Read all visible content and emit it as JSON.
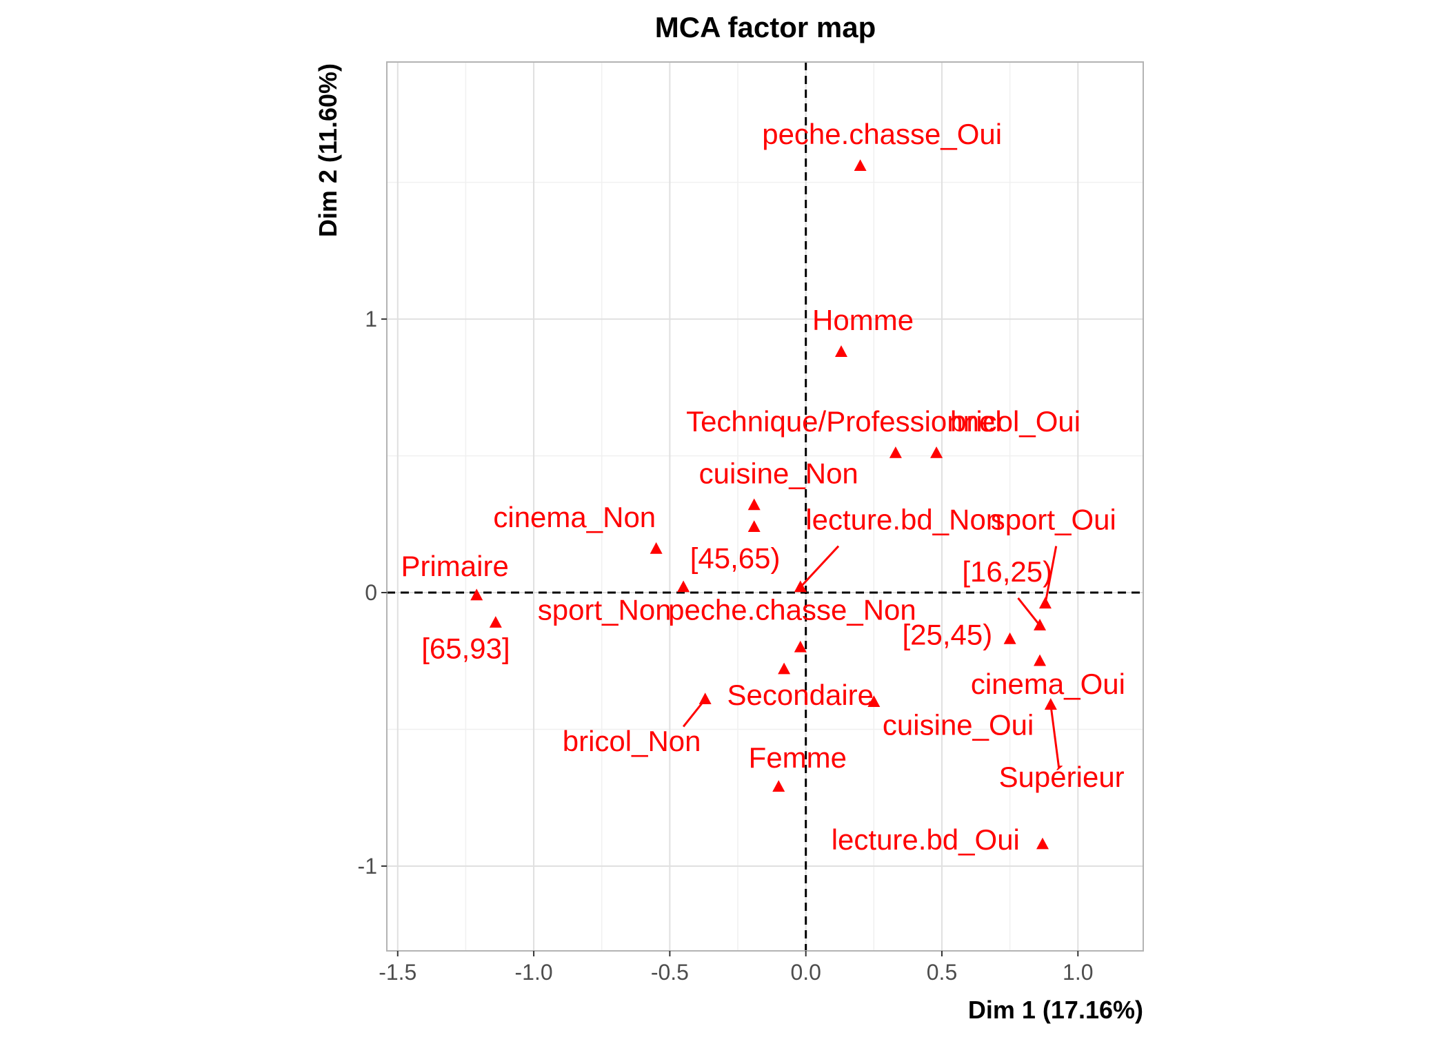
{
  "chart_data": {
    "type": "scatter",
    "title": "MCA factor map",
    "xlabel": "Dim 1 (17.16%)",
    "ylabel": "Dim 2 (11.60%)",
    "xlim": [
      -1.54,
      1.24
    ],
    "ylim": [
      -1.31,
      1.94
    ],
    "x_ticks": [
      -1.5,
      -1.0,
      -0.5,
      0.0,
      0.5,
      1.0
    ],
    "x_tick_labels": [
      "-1.5",
      "-1.0",
      "-0.5",
      "0.0",
      "0.5",
      "1.0"
    ],
    "y_ticks": [
      -1,
      0,
      1
    ],
    "y_tick_labels": [
      "-1",
      "0",
      "1"
    ],
    "grid": true,
    "reference_lines": [
      0,
      0
    ],
    "color": "#ff0000",
    "points": [
      {
        "label": "peche.chasse_Oui",
        "x": 0.2,
        "y": 1.56,
        "label_x": 0.28,
        "label_y": 1.64,
        "anchor": "middle"
      },
      {
        "label": "Homme",
        "x": 0.13,
        "y": 0.88,
        "label_x": 0.21,
        "label_y": 0.96,
        "anchor": "middle"
      },
      {
        "label": "Technique/Professionnel",
        "x": 0.33,
        "y": 0.51,
        "label_x": -0.44,
        "label_y": 0.59,
        "anchor": "start"
      },
      {
        "label": "bricol_Oui",
        "x": 0.48,
        "y": 0.51,
        "label_x": 0.77,
        "label_y": 0.59,
        "anchor": "middle"
      },
      {
        "label": "cuisine_Non",
        "x": -0.19,
        "y": 0.32,
        "label_x": -0.1,
        "label_y": 0.4,
        "anchor": "middle"
      },
      {
        "label": "cinema_Non",
        "x": -0.55,
        "y": 0.16,
        "label_x": -0.85,
        "label_y": 0.24,
        "anchor": "middle"
      },
      {
        "label": "lecture.bd_Non",
        "x": -0.02,
        "y": 0.02,
        "label_x": 0.36,
        "label_y": 0.23,
        "anchor": "middle",
        "segment": [
          0.12,
          0.17,
          -0.02,
          0.02
        ]
      },
      {
        "label": "sport_Oui",
        "x": 0.88,
        "y": -0.04,
        "label_x": 0.91,
        "label_y": 0.23,
        "anchor": "middle",
        "segment": [
          0.92,
          0.17,
          0.88,
          -0.04
        ]
      },
      {
        "label": "[45,65)",
        "x": -0.19,
        "y": 0.24,
        "label_x": -0.26,
        "label_y": 0.09,
        "anchor": "middle"
      },
      {
        "label": "Primaire",
        "x": -1.21,
        "y": -0.01,
        "label_x": -1.29,
        "label_y": 0.06,
        "anchor": "middle"
      },
      {
        "label": "[16,25)",
        "x": 0.86,
        "y": -0.12,
        "label_x": 0.74,
        "label_y": 0.04,
        "anchor": "middle",
        "segment": [
          0.78,
          -0.02,
          0.86,
          -0.12
        ]
      },
      {
        "label": "sport_Non",
        "x": -0.45,
        "y": 0.02,
        "label_x": -0.74,
        "label_y": -0.1,
        "anchor": "middle"
      },
      {
        "label": "peche.chasse_Non",
        "x": -0.08,
        "y": -0.28,
        "label_x": -0.05,
        "label_y": -0.1,
        "anchor": "middle"
      },
      {
        "label": "[65,93]",
        "x": -1.14,
        "y": -0.11,
        "label_x": -1.25,
        "label_y": -0.24,
        "anchor": "middle"
      },
      {
        "label": "[25,45)",
        "x": 0.75,
        "y": -0.17,
        "label_x": 0.52,
        "label_y": -0.19,
        "anchor": "middle"
      },
      {
        "label": "cinema_Oui",
        "x": 0.86,
        "y": -0.25,
        "label_x": 0.89,
        "label_y": -0.37,
        "anchor": "middle"
      },
      {
        "label": "Secondaire",
        "x": 0.25,
        "y": -0.4,
        "label_x": -0.02,
        "label_y": -0.41,
        "anchor": "middle"
      },
      {
        "label": "cuisine_Oui",
        "x": -0.02,
        "y": -0.2,
        "label_x": 0.56,
        "label_y": -0.52,
        "anchor": "middle"
      },
      {
        "label": "bricol_Non",
        "x": -0.37,
        "y": -0.39,
        "label_x": -0.64,
        "label_y": -0.58,
        "anchor": "middle",
        "segment": [
          -0.45,
          -0.49,
          -0.37,
          -0.39
        ]
      },
      {
        "label": "Supérieur",
        "x": 0.9,
        "y": -0.41,
        "label_x": 0.94,
        "label_y": -0.71,
        "anchor": "middle",
        "segment": [
          0.93,
          -0.64,
          0.9,
          -0.41
        ]
      },
      {
        "label": "Femme",
        "x": -0.1,
        "y": -0.71,
        "label_x": -0.03,
        "label_y": -0.64,
        "anchor": "middle"
      },
      {
        "label": "lecture.bd_Oui",
        "x": 0.87,
        "y": -0.92,
        "label_x": 0.44,
        "label_y": -0.94,
        "anchor": "middle"
      }
    ]
  }
}
